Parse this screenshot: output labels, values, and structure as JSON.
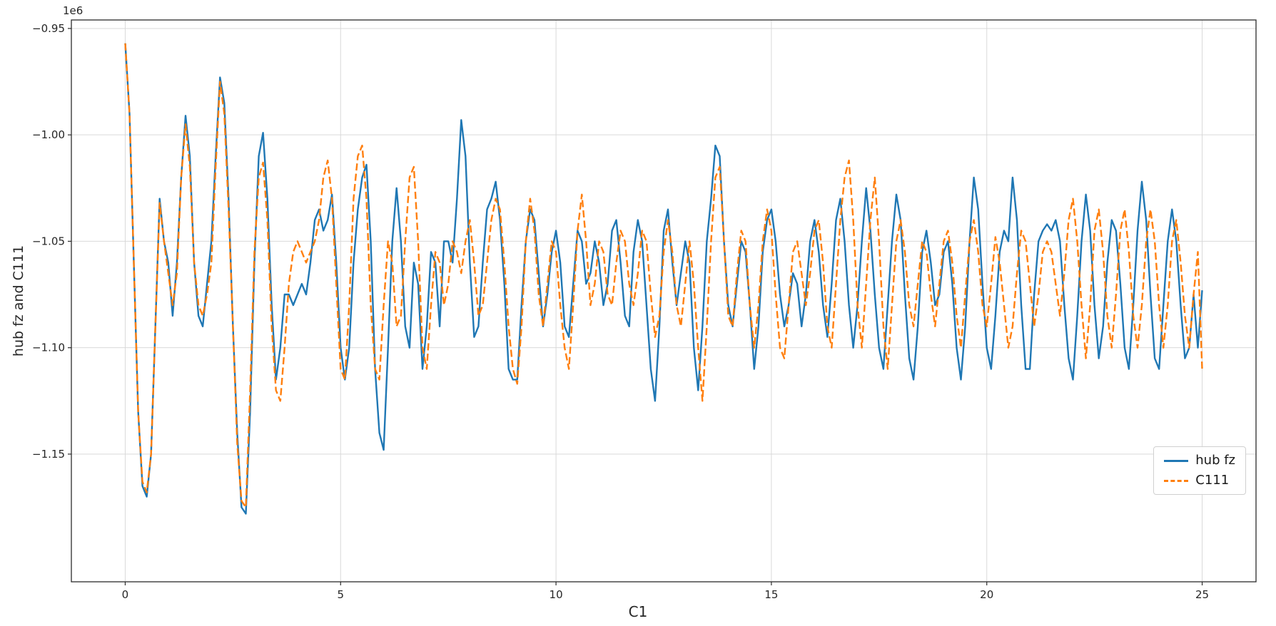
{
  "figure": {
    "background": "#ffffff"
  },
  "chart_data": {
    "type": "line",
    "title": "",
    "xlabel": "C1",
    "ylabel": "hub fz and C111",
    "y_offset_text": "1e6",
    "y_unit_multiplier": 1000000,
    "xlim": [
      -1.25,
      26.25
    ],
    "ylim": [
      -1.21,
      -0.946
    ],
    "x_ticks": [
      0,
      5,
      10,
      15,
      20,
      25
    ],
    "y_ticks": [
      -0.95,
      -1.0,
      -1.05,
      -1.1,
      -1.15
    ],
    "grid": true,
    "colors": {
      "series1": "#1f77b4",
      "series2": "#ff7f0e",
      "grid": "#d9d9d9",
      "spine": "#2b2b2b",
      "tick_label": "#262626"
    },
    "legend": {
      "position": "lower right",
      "entries": [
        {
          "label": "hub fz",
          "color": "#1f77b4",
          "style": "solid"
        },
        {
          "label": "C111",
          "color": "#ff7f0e",
          "style": "dashed"
        }
      ]
    },
    "x_start": 0,
    "x_step": 0.1,
    "series": [
      {
        "name": "hub fz",
        "color": "#1f77b4",
        "dash": null,
        "values": [
          -0.957,
          -0.99,
          -1.06,
          -1.13,
          -1.165,
          -1.17,
          -1.15,
          -1.09,
          -1.03,
          -1.05,
          -1.06,
          -1.085,
          -1.06,
          -1.02,
          -0.991,
          -1.01,
          -1.06,
          -1.085,
          -1.09,
          -1.07,
          -1.05,
          -1.01,
          -0.973,
          -0.985,
          -1.03,
          -1.09,
          -1.14,
          -1.175,
          -1.178,
          -1.13,
          -1.06,
          -1.01,
          -0.999,
          -1.03,
          -1.08,
          -1.115,
          -1.1,
          -1.075,
          -1.075,
          -1.08,
          -1.075,
          -1.07,
          -1.075,
          -1.06,
          -1.04,
          -1.035,
          -1.045,
          -1.04,
          -1.028,
          -1.06,
          -1.1,
          -1.115,
          -1.1,
          -1.06,
          -1.035,
          -1.02,
          -1.014,
          -1.05,
          -1.11,
          -1.14,
          -1.148,
          -1.1,
          -1.05,
          -1.025,
          -1.05,
          -1.09,
          -1.1,
          -1.06,
          -1.07,
          -1.11,
          -1.09,
          -1.055,
          -1.06,
          -1.09,
          -1.05,
          -1.05,
          -1.06,
          -1.03,
          -0.993,
          -1.01,
          -1.06,
          -1.095,
          -1.09,
          -1.06,
          -1.035,
          -1.03,
          -1.022,
          -1.04,
          -1.07,
          -1.11,
          -1.115,
          -1.115,
          -1.08,
          -1.05,
          -1.035,
          -1.04,
          -1.065,
          -1.09,
          -1.075,
          -1.055,
          -1.045,
          -1.06,
          -1.09,
          -1.095,
          -1.07,
          -1.045,
          -1.05,
          -1.07,
          -1.065,
          -1.05,
          -1.06,
          -1.08,
          -1.07,
          -1.045,
          -1.04,
          -1.06,
          -1.085,
          -1.09,
          -1.055,
          -1.04,
          -1.05,
          -1.08,
          -1.11,
          -1.125,
          -1.09,
          -1.045,
          -1.035,
          -1.06,
          -1.08,
          -1.065,
          -1.05,
          -1.06,
          -1.1,
          -1.12,
          -1.09,
          -1.05,
          -1.03,
          -1.005,
          -1.01,
          -1.05,
          -1.08,
          -1.09,
          -1.07,
          -1.05,
          -1.055,
          -1.08,
          -1.11,
          -1.09,
          -1.055,
          -1.04,
          -1.035,
          -1.05,
          -1.075,
          -1.09,
          -1.08,
          -1.065,
          -1.07,
          -1.09,
          -1.075,
          -1.05,
          -1.04,
          -1.055,
          -1.08,
          -1.095,
          -1.07,
          -1.04,
          -1.03,
          -1.05,
          -1.08,
          -1.1,
          -1.08,
          -1.05,
          -1.025,
          -1.045,
          -1.075,
          -1.1,
          -1.11,
          -1.08,
          -1.05,
          -1.028,
          -1.04,
          -1.075,
          -1.105,
          -1.115,
          -1.09,
          -1.055,
          -1.045,
          -1.06,
          -1.08,
          -1.075,
          -1.055,
          -1.05,
          -1.07,
          -1.1,
          -1.115,
          -1.09,
          -1.05,
          -1.02,
          -1.035,
          -1.07,
          -1.1,
          -1.11,
          -1.085,
          -1.055,
          -1.045,
          -1.05,
          -1.02,
          -1.04,
          -1.08,
          -1.11,
          -1.11,
          -1.075,
          -1.05,
          -1.045,
          -1.042,
          -1.045,
          -1.04,
          -1.05,
          -1.08,
          -1.105,
          -1.115,
          -1.085,
          -1.05,
          -1.028,
          -1.045,
          -1.08,
          -1.105,
          -1.09,
          -1.06,
          -1.04,
          -1.045,
          -1.07,
          -1.1,
          -1.11,
          -1.08,
          -1.045,
          -1.022,
          -1.04,
          -1.075,
          -1.105,
          -1.11,
          -1.08,
          -1.05,
          -1.035,
          -1.05,
          -1.08,
          -1.105,
          -1.1,
          -1.075,
          -1.1,
          -1.073
        ]
      },
      {
        "name": "C111",
        "color": "#ff7f0e",
        "dash": [
          10,
          4.5
        ],
        "values": [
          -0.957,
          -0.99,
          -1.06,
          -1.13,
          -1.163,
          -1.168,
          -1.15,
          -1.09,
          -1.032,
          -1.05,
          -1.065,
          -1.08,
          -1.065,
          -1.02,
          -0.995,
          -1.015,
          -1.06,
          -1.08,
          -1.085,
          -1.075,
          -1.06,
          -1.015,
          -0.975,
          -0.99,
          -1.035,
          -1.09,
          -1.145,
          -1.172,
          -1.175,
          -1.12,
          -1.055,
          -1.02,
          -1.013,
          -1.04,
          -1.09,
          -1.12,
          -1.125,
          -1.1,
          -1.07,
          -1.055,
          -1.05,
          -1.055,
          -1.06,
          -1.055,
          -1.05,
          -1.04,
          -1.02,
          -1.012,
          -1.03,
          -1.07,
          -1.11,
          -1.115,
          -1.08,
          -1.03,
          -1.01,
          -1.005,
          -1.03,
          -1.08,
          -1.11,
          -1.115,
          -1.08,
          -1.05,
          -1.06,
          -1.09,
          -1.085,
          -1.05,
          -1.02,
          -1.015,
          -1.05,
          -1.1,
          -1.11,
          -1.08,
          -1.055,
          -1.06,
          -1.08,
          -1.07,
          -1.05,
          -1.055,
          -1.065,
          -1.05,
          -1.04,
          -1.06,
          -1.085,
          -1.08,
          -1.06,
          -1.04,
          -1.03,
          -1.035,
          -1.06,
          -1.09,
          -1.11,
          -1.117,
          -1.09,
          -1.05,
          -1.03,
          -1.045,
          -1.075,
          -1.09,
          -1.07,
          -1.05,
          -1.055,
          -1.08,
          -1.1,
          -1.11,
          -1.08,
          -1.045,
          -1.028,
          -1.05,
          -1.08,
          -1.07,
          -1.05,
          -1.055,
          -1.075,
          -1.08,
          -1.06,
          -1.045,
          -1.05,
          -1.07,
          -1.08,
          -1.065,
          -1.045,
          -1.05,
          -1.075,
          -1.095,
          -1.085,
          -1.055,
          -1.04,
          -1.055,
          -1.08,
          -1.09,
          -1.07,
          -1.05,
          -1.07,
          -1.1,
          -1.125,
          -1.09,
          -1.05,
          -1.02,
          -1.015,
          -1.05,
          -1.085,
          -1.09,
          -1.065,
          -1.045,
          -1.05,
          -1.08,
          -1.1,
          -1.08,
          -1.05,
          -1.035,
          -1.045,
          -1.075,
          -1.1,
          -1.105,
          -1.08,
          -1.055,
          -1.05,
          -1.065,
          -1.08,
          -1.065,
          -1.045,
          -1.04,
          -1.06,
          -1.09,
          -1.1,
          -1.07,
          -1.04,
          -1.02,
          -1.012,
          -1.04,
          -1.08,
          -1.1,
          -1.07,
          -1.04,
          -1.02,
          -1.05,
          -1.09,
          -1.11,
          -1.08,
          -1.05,
          -1.04,
          -1.055,
          -1.08,
          -1.09,
          -1.07,
          -1.05,
          -1.055,
          -1.075,
          -1.09,
          -1.07,
          -1.05,
          -1.045,
          -1.06,
          -1.085,
          -1.1,
          -1.075,
          -1.05,
          -1.04,
          -1.055,
          -1.08,
          -1.09,
          -1.07,
          -1.048,
          -1.06,
          -1.08,
          -1.1,
          -1.09,
          -1.065,
          -1.045,
          -1.05,
          -1.07,
          -1.09,
          -1.075,
          -1.055,
          -1.05,
          -1.055,
          -1.07,
          -1.085,
          -1.065,
          -1.04,
          -1.03,
          -1.05,
          -1.08,
          -1.105,
          -1.08,
          -1.045,
          -1.035,
          -1.055,
          -1.085,
          -1.1,
          -1.075,
          -1.045,
          -1.035,
          -1.055,
          -1.085,
          -1.1,
          -1.08,
          -1.05,
          -1.035,
          -1.05,
          -1.08,
          -1.1,
          -1.08,
          -1.05,
          -1.04,
          -1.06,
          -1.085,
          -1.1,
          -1.075,
          -1.055,
          -1.11
        ]
      }
    ]
  }
}
